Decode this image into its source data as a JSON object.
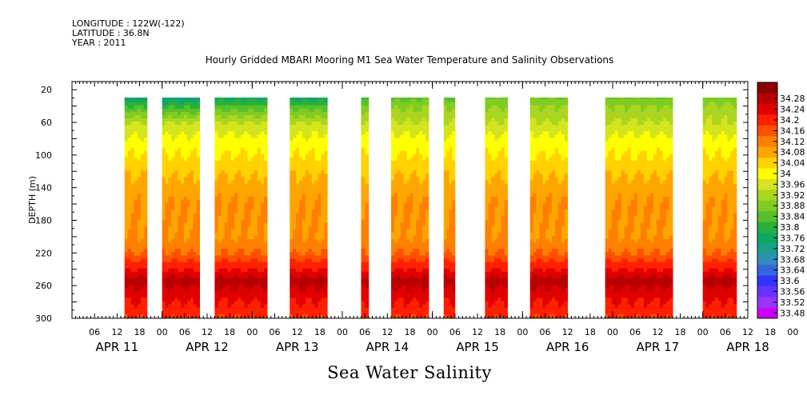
{
  "header": {
    "longitude": "LONGITUDE : 122W(-122)",
    "latitude": "LATITUDE : 36.8N",
    "year": "YEAR : 2011"
  },
  "chart_data": {
    "type": "heatmap",
    "title": "Hourly Gridded MBARI Mooring M1 Sea Water Temperature and Salinity Observations",
    "variable": "Sea Water Salinity",
    "ylabel": "DEPTH (m)",
    "y_reversed": true,
    "ylim": [
      300,
      10
    ],
    "y_ticks": [
      20,
      60,
      100,
      140,
      180,
      220,
      260,
      300
    ],
    "x_range_hours": [
      "2011-04-11 00:00",
      "2011-04-18 12:00"
    ],
    "hour_tick_labels": [
      "06",
      "12",
      "18",
      "00",
      "06",
      "12",
      "18",
      "00",
      "06",
      "12",
      "18",
      "00",
      "06",
      "12",
      "18",
      "00",
      "06",
      "12",
      "18",
      "00",
      "06",
      "12",
      "18",
      "00",
      "06",
      "12",
      "18",
      "00",
      "06",
      "12",
      "18",
      "00",
      "06"
    ],
    "day_labels": [
      "APR 11",
      "APR 12",
      "APR 13",
      "APR 14",
      "APR 15",
      "APR 16",
      "APR 17",
      "APR 18"
    ],
    "data_segments": [
      {
        "start": "2011-04-11 14:00",
        "end": "2011-04-11 20:00",
        "surface": 33.62
      },
      {
        "start": "2011-04-12 00:00",
        "end": "2011-04-12 10:00",
        "surface": 33.6
      },
      {
        "start": "2011-04-12 14:00",
        "end": "2011-04-13 04:00",
        "surface": 33.64
      },
      {
        "start": "2011-04-13 10:00",
        "end": "2011-04-13 20:00",
        "surface": 33.64
      },
      {
        "start": "2011-04-14 05:00",
        "end": "2011-04-14 07:00",
        "surface": 33.72
      },
      {
        "start": "2011-04-14 13:00",
        "end": "2011-04-14 23:00",
        "surface": 33.76
      },
      {
        "start": "2011-04-15 03:00",
        "end": "2011-04-15 06:00",
        "surface": 33.76
      },
      {
        "start": "2011-04-15 14:00",
        "end": "2011-04-15 20:00",
        "surface": 33.78
      },
      {
        "start": "2011-04-16 02:00",
        "end": "2011-04-16 12:00",
        "surface": 33.78
      },
      {
        "start": "2011-04-16 22:00",
        "end": "2011-04-17 16:00",
        "surface": 33.78
      },
      {
        "start": "2011-04-18 00:00",
        "end": "2011-04-18 09:00",
        "surface": 33.8
      }
    ],
    "profile": [
      {
        "depth": 10,
        "value": 33.62
      },
      {
        "depth": 20,
        "value": 33.64
      },
      {
        "depth": 40,
        "value": 33.8
      },
      {
        "depth": 60,
        "value": 33.92
      },
      {
        "depth": 80,
        "value": 33.97
      },
      {
        "depth": 100,
        "value": 34.0
      },
      {
        "depth": 120,
        "value": 34.03
      },
      {
        "depth": 140,
        "value": 34.06
      },
      {
        "depth": 160,
        "value": 34.08
      },
      {
        "depth": 200,
        "value": 34.08
      },
      {
        "depth": 220,
        "value": 34.12
      },
      {
        "depth": 240,
        "value": 34.2
      },
      {
        "depth": 255,
        "value": 34.26
      },
      {
        "depth": 270,
        "value": 34.22
      },
      {
        "depth": 300,
        "value": 34.16
      }
    ],
    "colorbar": {
      "levels": [
        "33.48",
        "33.52",
        "33.56",
        "33.6",
        "33.64",
        "33.68",
        "33.72",
        "33.76",
        "33.8",
        "33.84",
        "33.88",
        "33.92",
        "33.96",
        "34",
        "34.04",
        "34.08",
        "34.12",
        "34.16",
        "34.2",
        "34.24",
        "34.28"
      ],
      "colors": [
        "#cc00ff",
        "#9933ff",
        "#6633ff",
        "#3333ff",
        "#3366dd",
        "#2f8fb8",
        "#1aa08a",
        "#10a860",
        "#29b13a",
        "#55c02c",
        "#80cc22",
        "#aad620",
        "#d4e41e",
        "#ffff00",
        "#ffd200",
        "#ffa500",
        "#ff8000",
        "#ff5000",
        "#ff2000",
        "#e00000",
        "#b80000",
        "#8b0000"
      ]
    }
  }
}
